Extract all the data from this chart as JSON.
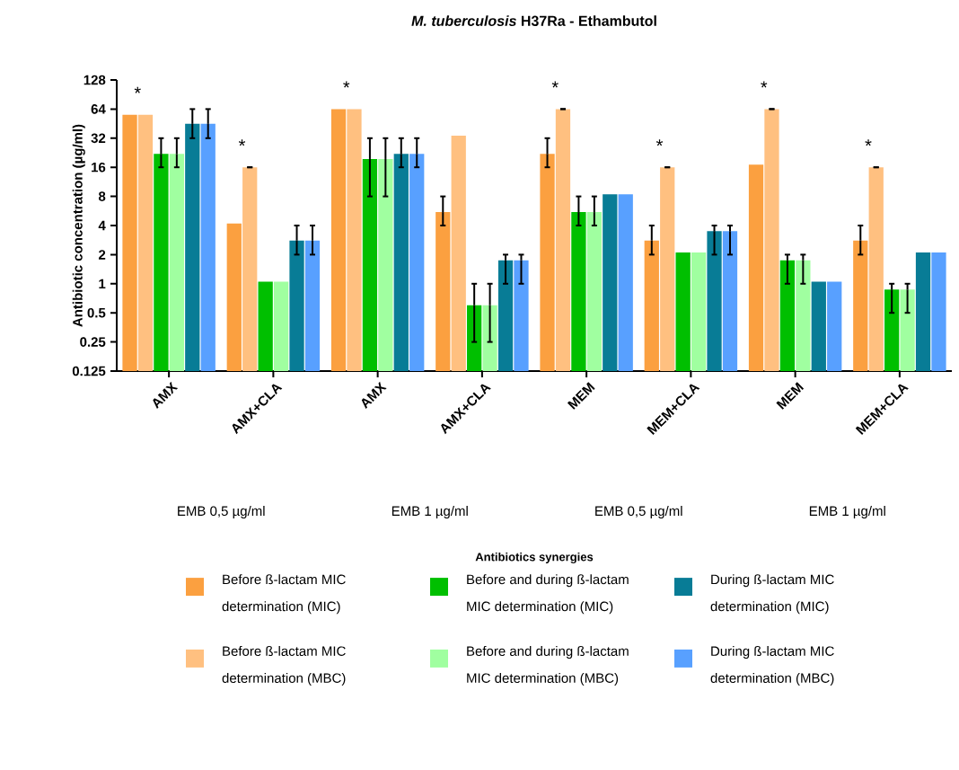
{
  "chart_data": {
    "type": "bar",
    "title": "*M. tuberculosis* H37Ra - Ethambutol",
    "ylabel": "Antibiotic concentration (µg/ml)",
    "categories": [
      "AMX",
      "AMX+CLA",
      "AMX",
      "AMX+CLA",
      "MEM",
      "MEM+CLA",
      "MEM",
      "MEM+CLA"
    ],
    "series": [
      {
        "name": "Before ß-lactam MIC determination (MIC)",
        "color": "#fba040",
        "values": [
          56,
          4.2,
          64,
          5.5,
          22,
          2.8,
          17,
          2.8
        ],
        "errors": [
          null,
          null,
          null,
          [
            4,
            8
          ],
          [
            16,
            32
          ],
          [
            2,
            4
          ],
          null,
          [
            2,
            4
          ]
        ]
      },
      {
        "name": "Before ß-lactam MIC determination (MBC)",
        "color": "#ffc080",
        "values": [
          56,
          16,
          64,
          34,
          64,
          16,
          64,
          16
        ],
        "errors": [
          null,
          [
            16,
            16
          ],
          null,
          null,
          [
            64,
            64
          ],
          [
            16,
            16
          ],
          [
            64,
            64
          ],
          [
            16,
            16
          ]
        ]
      },
      {
        "name": "Before and during ß-lactam MIC determination (MIC)",
        "color": "#00bf00",
        "values": [
          22,
          1.05,
          19.5,
          0.6,
          5.5,
          2.1,
          1.75,
          0.87
        ],
        "errors": [
          [
            16,
            32
          ],
          null,
          [
            8,
            32
          ],
          [
            0.25,
            1
          ],
          [
            4,
            8
          ],
          null,
          [
            1,
            2
          ],
          [
            0.5,
            1
          ]
        ]
      },
      {
        "name": "Before and during ß-lactam MIC determination (MBC)",
        "color": "#a0ffa0",
        "values": [
          22,
          1.05,
          19.5,
          0.6,
          5.5,
          2.1,
          1.75,
          0.87
        ],
        "errors": [
          [
            16,
            32
          ],
          null,
          [
            8,
            32
          ],
          [
            0.25,
            1
          ],
          [
            4,
            8
          ],
          null,
          [
            1,
            2
          ],
          [
            0.5,
            1
          ]
        ]
      },
      {
        "name": "During ß-lactam MIC determination (MIC)",
        "color": "#087c96",
        "values": [
          45,
          2.8,
          22,
          1.75,
          8.4,
          3.5,
          1.05,
          2.1
        ],
        "errors": [
          [
            32,
            64
          ],
          [
            2,
            4
          ],
          [
            16,
            32
          ],
          [
            1,
            2
          ],
          null,
          [
            2,
            4
          ],
          null,
          null
        ]
      },
      {
        "name": "During ß-lactam MIC determination (MBC)",
        "color": "#58a0ff",
        "values": [
          45,
          2.8,
          22,
          1.75,
          8.4,
          3.5,
          1.05,
          2.1
        ],
        "errors": [
          [
            32,
            64
          ],
          [
            2,
            4
          ],
          [
            16,
            32
          ],
          [
            1,
            2
          ],
          null,
          [
            2,
            4
          ],
          null,
          null
        ]
      }
    ],
    "log": true,
    "ylim": [
      0.125,
      128
    ],
    "yticks": [
      0.125,
      0.25,
      0.5,
      1,
      2,
      4,
      8,
      16,
      32,
      64,
      128
    ],
    "grid": false,
    "legend": "bottom",
    "annotations": [
      "*",
      "*",
      "*",
      "*",
      "*",
      "*",
      "*",
      "EMB 0,5 µg/ml",
      "EMB 1 µg/ml",
      "EMB 0,5 µg/ml",
      "EMB 1 µg/ml",
      "Antibiotics synergies"
    ]
  }
}
